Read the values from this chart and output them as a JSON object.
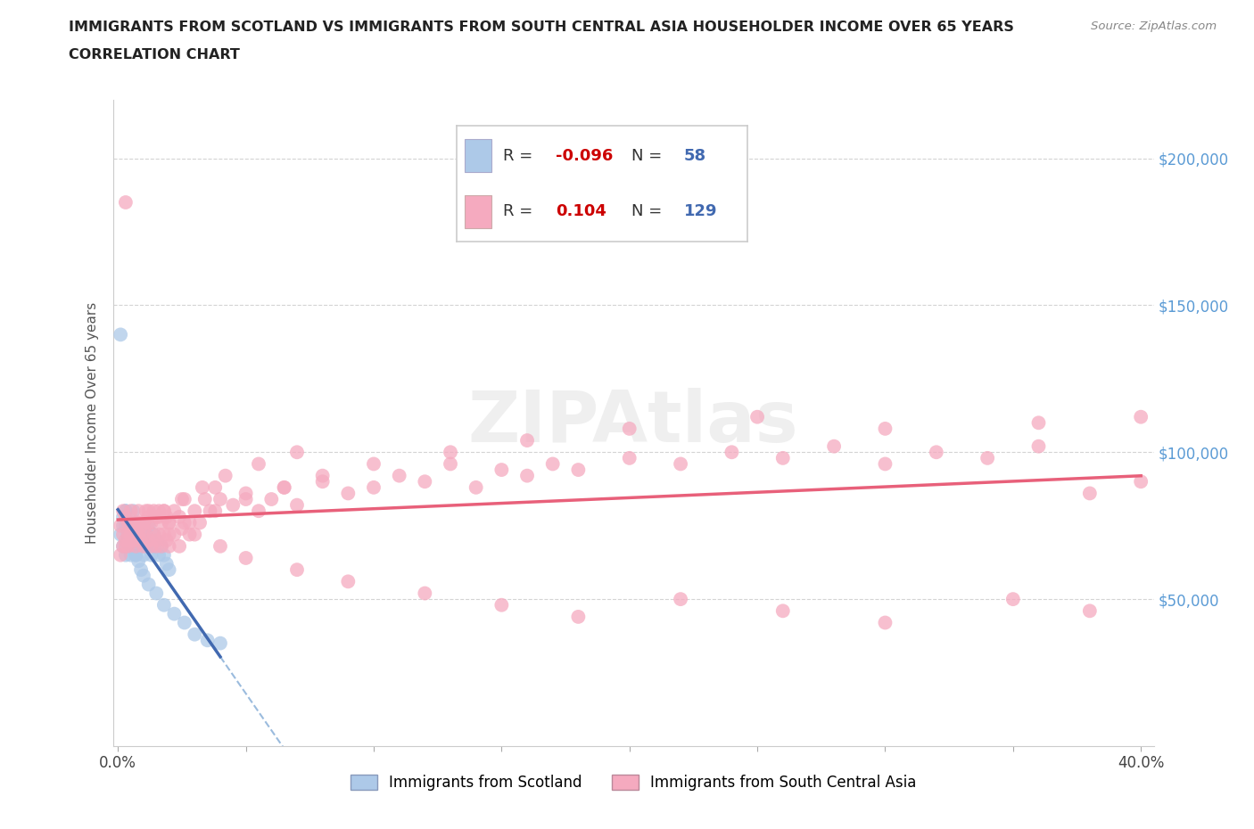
{
  "title_line1": "IMMIGRANTS FROM SCOTLAND VS IMMIGRANTS FROM SOUTH CENTRAL ASIA HOUSEHOLDER INCOME OVER 65 YEARS",
  "title_line2": "CORRELATION CHART",
  "source": "Source: ZipAtlas.com",
  "ylabel": "Householder Income Over 65 years",
  "xlim": [
    -0.002,
    0.405
  ],
  "ylim": [
    0,
    220000
  ],
  "yticks": [
    50000,
    100000,
    150000,
    200000
  ],
  "xticks": [
    0.0,
    0.05,
    0.1,
    0.15,
    0.2,
    0.25,
    0.3,
    0.35,
    0.4
  ],
  "scotland_color": "#adc9e8",
  "south_asia_color": "#f5aabf",
  "scotland_line_color": "#4169b0",
  "south_asia_line_color": "#e8607a",
  "scotland_R": -0.096,
  "scotland_N": 58,
  "south_asia_R": 0.104,
  "south_asia_N": 129,
  "legend_R_color": "#cc0000",
  "legend_N_color": "#4169b0",
  "background_color": "#ffffff",
  "grid_color": "#d0d0d0",
  "scotland_x": [
    0.001,
    0.002,
    0.002,
    0.003,
    0.003,
    0.003,
    0.004,
    0.004,
    0.004,
    0.005,
    0.005,
    0.005,
    0.006,
    0.006,
    0.006,
    0.007,
    0.007,
    0.007,
    0.008,
    0.008,
    0.008,
    0.009,
    0.009,
    0.01,
    0.01,
    0.01,
    0.011,
    0.011,
    0.012,
    0.012,
    0.013,
    0.013,
    0.014,
    0.014,
    0.015,
    0.016,
    0.017,
    0.018,
    0.019,
    0.02,
    0.001,
    0.002,
    0.003,
    0.004,
    0.005,
    0.006,
    0.007,
    0.008,
    0.009,
    0.01,
    0.012,
    0.015,
    0.018,
    0.022,
    0.026,
    0.03,
    0.035,
    0.04
  ],
  "scotland_y": [
    72000,
    68000,
    78000,
    75000,
    65000,
    80000,
    70000,
    72000,
    68000,
    75000,
    65000,
    72000,
    68000,
    75000,
    80000,
    70000,
    72000,
    65000,
    68000,
    75000,
    70000,
    68000,
    72000,
    75000,
    65000,
    70000,
    68000,
    72000,
    75000,
    68000,
    70000,
    65000,
    68000,
    72000,
    70000,
    65000,
    68000,
    65000,
    62000,
    60000,
    140000,
    75000,
    80000,
    72000,
    70000,
    68000,
    65000,
    63000,
    60000,
    58000,
    55000,
    52000,
    48000,
    45000,
    42000,
    38000,
    36000,
    35000
  ],
  "south_asia_x": [
    0.001,
    0.002,
    0.002,
    0.003,
    0.003,
    0.004,
    0.004,
    0.005,
    0.005,
    0.006,
    0.006,
    0.007,
    0.007,
    0.008,
    0.008,
    0.009,
    0.009,
    0.01,
    0.01,
    0.011,
    0.011,
    0.012,
    0.012,
    0.013,
    0.013,
    0.014,
    0.014,
    0.015,
    0.015,
    0.016,
    0.016,
    0.017,
    0.017,
    0.018,
    0.018,
    0.019,
    0.019,
    0.02,
    0.02,
    0.022,
    0.022,
    0.024,
    0.024,
    0.026,
    0.026,
    0.028,
    0.03,
    0.032,
    0.034,
    0.036,
    0.038,
    0.04,
    0.045,
    0.05,
    0.055,
    0.06,
    0.065,
    0.07,
    0.08,
    0.09,
    0.1,
    0.11,
    0.12,
    0.13,
    0.14,
    0.15,
    0.16,
    0.17,
    0.18,
    0.2,
    0.22,
    0.24,
    0.26,
    0.28,
    0.3,
    0.32,
    0.34,
    0.36,
    0.38,
    0.4,
    0.003,
    0.005,
    0.008,
    0.012,
    0.016,
    0.02,
    0.025,
    0.03,
    0.04,
    0.05,
    0.07,
    0.09,
    0.12,
    0.15,
    0.18,
    0.22,
    0.26,
    0.3,
    0.35,
    0.38,
    0.002,
    0.004,
    0.006,
    0.01,
    0.015,
    0.02,
    0.028,
    0.038,
    0.05,
    0.065,
    0.08,
    0.1,
    0.13,
    0.16,
    0.2,
    0.25,
    0.3,
    0.36,
    0.4,
    0.001,
    0.003,
    0.007,
    0.012,
    0.018,
    0.025,
    0.033,
    0.042,
    0.055,
    0.07
  ],
  "south_asia_y": [
    75000,
    72000,
    80000,
    70000,
    78000,
    68000,
    76000,
    72000,
    80000,
    70000,
    75000,
    68000,
    76000,
    72000,
    80000,
    70000,
    75000,
    68000,
    76000,
    72000,
    80000,
    70000,
    78000,
    68000,
    76000,
    72000,
    80000,
    70000,
    78000,
    72000,
    80000,
    68000,
    76000,
    72000,
    80000,
    70000,
    78000,
    68000,
    76000,
    80000,
    72000,
    78000,
    68000,
    76000,
    84000,
    72000,
    80000,
    76000,
    84000,
    80000,
    88000,
    84000,
    82000,
    86000,
    80000,
    84000,
    88000,
    82000,
    90000,
    86000,
    88000,
    92000,
    90000,
    96000,
    88000,
    94000,
    92000,
    96000,
    94000,
    98000,
    96000,
    100000,
    98000,
    102000,
    96000,
    100000,
    98000,
    102000,
    86000,
    90000,
    185000,
    72000,
    76000,
    80000,
    78000,
    76000,
    74000,
    72000,
    68000,
    64000,
    60000,
    56000,
    52000,
    48000,
    44000,
    50000,
    46000,
    42000,
    50000,
    46000,
    68000,
    72000,
    70000,
    74000,
    68000,
    72000,
    76000,
    80000,
    84000,
    88000,
    92000,
    96000,
    100000,
    104000,
    108000,
    112000,
    108000,
    110000,
    112000,
    65000,
    68000,
    72000,
    76000,
    80000,
    84000,
    88000,
    92000,
    96000,
    100000
  ]
}
